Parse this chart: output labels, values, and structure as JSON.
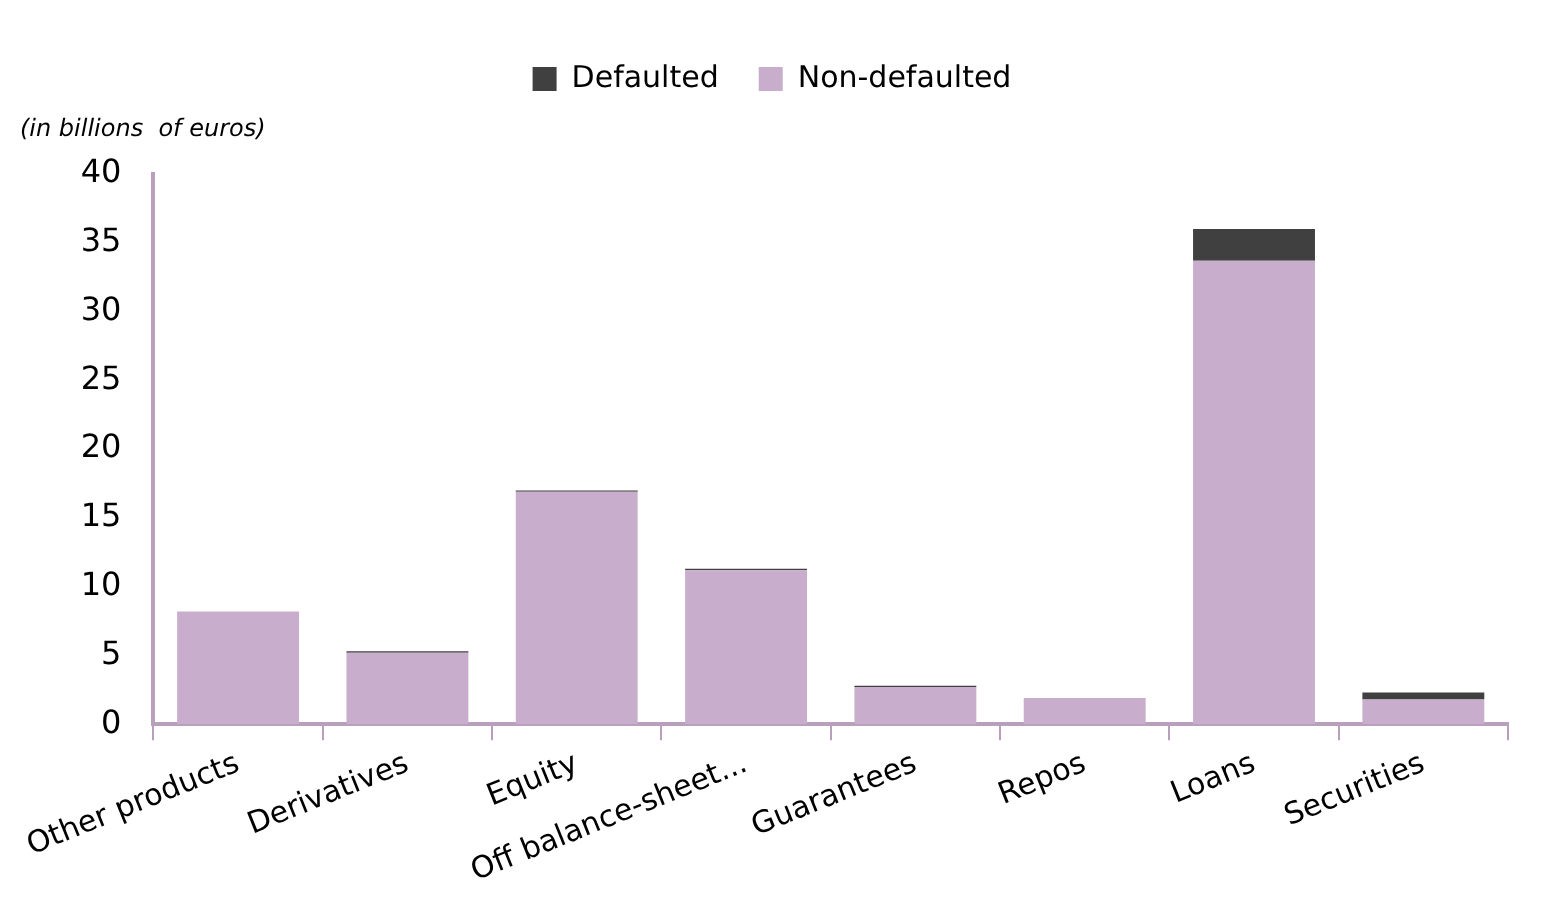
{
  "chart_data": {
    "type": "bar",
    "ylabel": "(in billions  of euros)",
    "categories": [
      "Other products",
      "Derivatives",
      "Equity",
      "Off balance-sheet...",
      "Guarantees",
      "Repos",
      "Loans",
      "Securities"
    ],
    "series": [
      {
        "name": "Non-defaulted",
        "color": "#c8aecc",
        "values": [
          8.2,
          5.2,
          16.9,
          11.2,
          2.7,
          1.9,
          33.7,
          1.8
        ]
      },
      {
        "name": "Defaulted",
        "color": "#404040",
        "values": [
          0,
          0.1,
          0.1,
          0.1,
          0.1,
          0,
          2.3,
          0.5
        ]
      }
    ],
    "stacked": true,
    "ylim": [
      0,
      40
    ],
    "yticks": [
      0,
      5,
      10,
      15,
      20,
      25,
      30,
      35,
      40
    ],
    "grid": false,
    "legend": "top"
  }
}
